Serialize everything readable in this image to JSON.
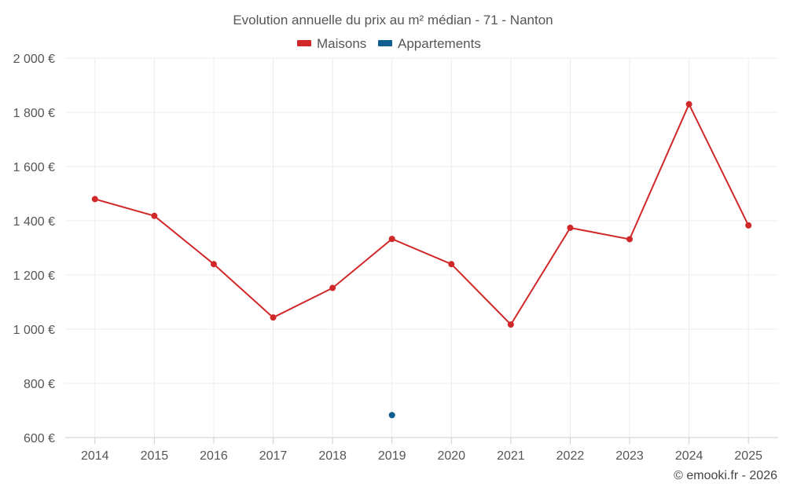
{
  "chart_data": {
    "type": "line",
    "title": "Evolution annuelle du prix au m² médian - 71 - Nanton",
    "categories": [
      "2014",
      "2015",
      "2016",
      "2017",
      "2018",
      "2019",
      "2020",
      "2021",
      "2022",
      "2023",
      "2024",
      "2025"
    ],
    "ylim": [
      600,
      2000
    ],
    "yticks": [
      600,
      800,
      1000,
      1200,
      1400,
      1600,
      1800,
      2000
    ],
    "ytick_labels": [
      "600 €",
      "800 €",
      "1 000 €",
      "1 200 €",
      "1 400 €",
      "1 600 €",
      "1 800 €",
      "2 000 €"
    ],
    "grid": true,
    "legend_position": "top-center",
    "series": [
      {
        "name": "Maisons",
        "color": "#d02828",
        "values": [
          1480,
          1418,
          1240,
          1043,
          1152,
          1333,
          1240,
          1017,
          1374,
          1332,
          1830,
          1383
        ]
      },
      {
        "name": "Appartements",
        "color": "#0d5f91",
        "values": [
          null,
          null,
          null,
          null,
          null,
          683,
          null,
          null,
          null,
          null,
          null,
          null
        ]
      }
    ]
  },
  "credit": "© emooki.fr - 2026"
}
